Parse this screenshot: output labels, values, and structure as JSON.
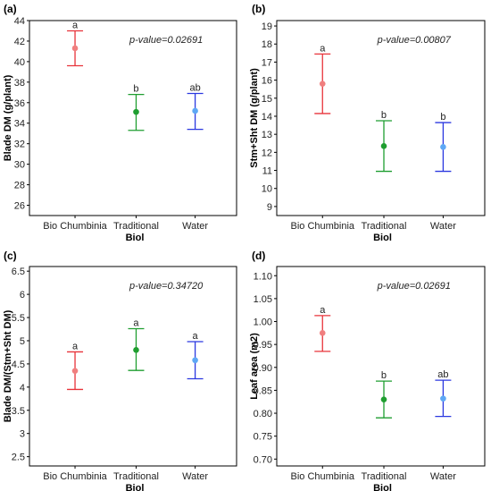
{
  "chart_data": [
    {
      "type": "scatter",
      "panel_label": "(a)",
      "categories": [
        "Bio Chumbinia",
        "Traditional",
        "Water"
      ],
      "xlabel": "Biol",
      "ylabel": "Blade DM (g/plant)",
      "annotation": "p-value=0.02691",
      "ylim": [
        25,
        44
      ],
      "yticks": [
        26,
        28,
        30,
        32,
        34,
        36,
        38,
        40,
        42,
        44
      ],
      "values": [
        41.3,
        35.1,
        35.2
      ],
      "lower": [
        39.6,
        33.3,
        33.4
      ],
      "upper": [
        43.0,
        36.8,
        36.9
      ],
      "groups": [
        "a",
        "b",
        "ab"
      ],
      "grid": false
    },
    {
      "type": "scatter",
      "panel_label": "(b)",
      "categories": [
        "Bio Chumbinia",
        "Traditional",
        "Water"
      ],
      "xlabel": "Biol",
      "ylabel": "Stm+Sht DM (g/plant)",
      "annotation": "p-value=0.00807",
      "ylim": [
        8.5,
        19.3
      ],
      "yticks": [
        9,
        10,
        11,
        12,
        13,
        14,
        15,
        16,
        17,
        18,
        19
      ],
      "values": [
        15.8,
        12.35,
        12.3
      ],
      "lower": [
        14.15,
        10.95,
        10.95
      ],
      "upper": [
        17.45,
        13.75,
        13.65
      ],
      "groups": [
        "a",
        "b",
        "b"
      ],
      "grid": false
    },
    {
      "type": "scatter",
      "panel_label": "(c)",
      "categories": [
        "Bio Chumbinia",
        "Traditional",
        "Water"
      ],
      "xlabel": "Biol",
      "ylabel": "Blade DM/(Stm+Sht DM)",
      "annotation": "p-value=0.34720",
      "ylim": [
        2.3,
        6.6
      ],
      "yticks": [
        2.5,
        3.0,
        3.5,
        4.0,
        4.5,
        5.0,
        5.5,
        6.0,
        6.5
      ],
      "values": [
        4.35,
        4.8,
        4.58
      ],
      "lower": [
        3.95,
        4.36,
        4.18
      ],
      "upper": [
        4.76,
        5.26,
        4.98
      ],
      "groups": [
        "a",
        "a",
        "a"
      ],
      "grid": false
    },
    {
      "type": "scatter",
      "panel_label": "(d)",
      "categories": [
        "Bio Chumbinia",
        "Traditional",
        "Water"
      ],
      "xlabel": "Biol",
      "ylabel": "Leaf area (m2)",
      "annotation": "p-value=0.02691",
      "ylim": [
        0.685,
        1.12
      ],
      "yticks": [
        0.7,
        0.75,
        0.8,
        0.85,
        0.9,
        0.95,
        1.0,
        1.05,
        1.1
      ],
      "yticklabels": [
        "0.70",
        "0.75",
        "0.80",
        "0.85",
        "0.90",
        "0.95",
        "1.00",
        "1.05",
        "1.10"
      ],
      "values": [
        0.975,
        0.83,
        0.832
      ],
      "lower": [
        0.935,
        0.79,
        0.793
      ],
      "upper": [
        1.013,
        0.87,
        0.872
      ],
      "groups": [
        "a",
        "b",
        "ab"
      ],
      "grid": false
    }
  ],
  "colors": {
    "Bio Chumbinia": {
      "bar": "#e8333a",
      "point": "#f07f7f"
    },
    "Traditional": {
      "bar": "#1f9e30",
      "point": "#1f9e30"
    },
    "Water": {
      "bar": "#2b38e0",
      "point": "#5ea8f5"
    }
  }
}
